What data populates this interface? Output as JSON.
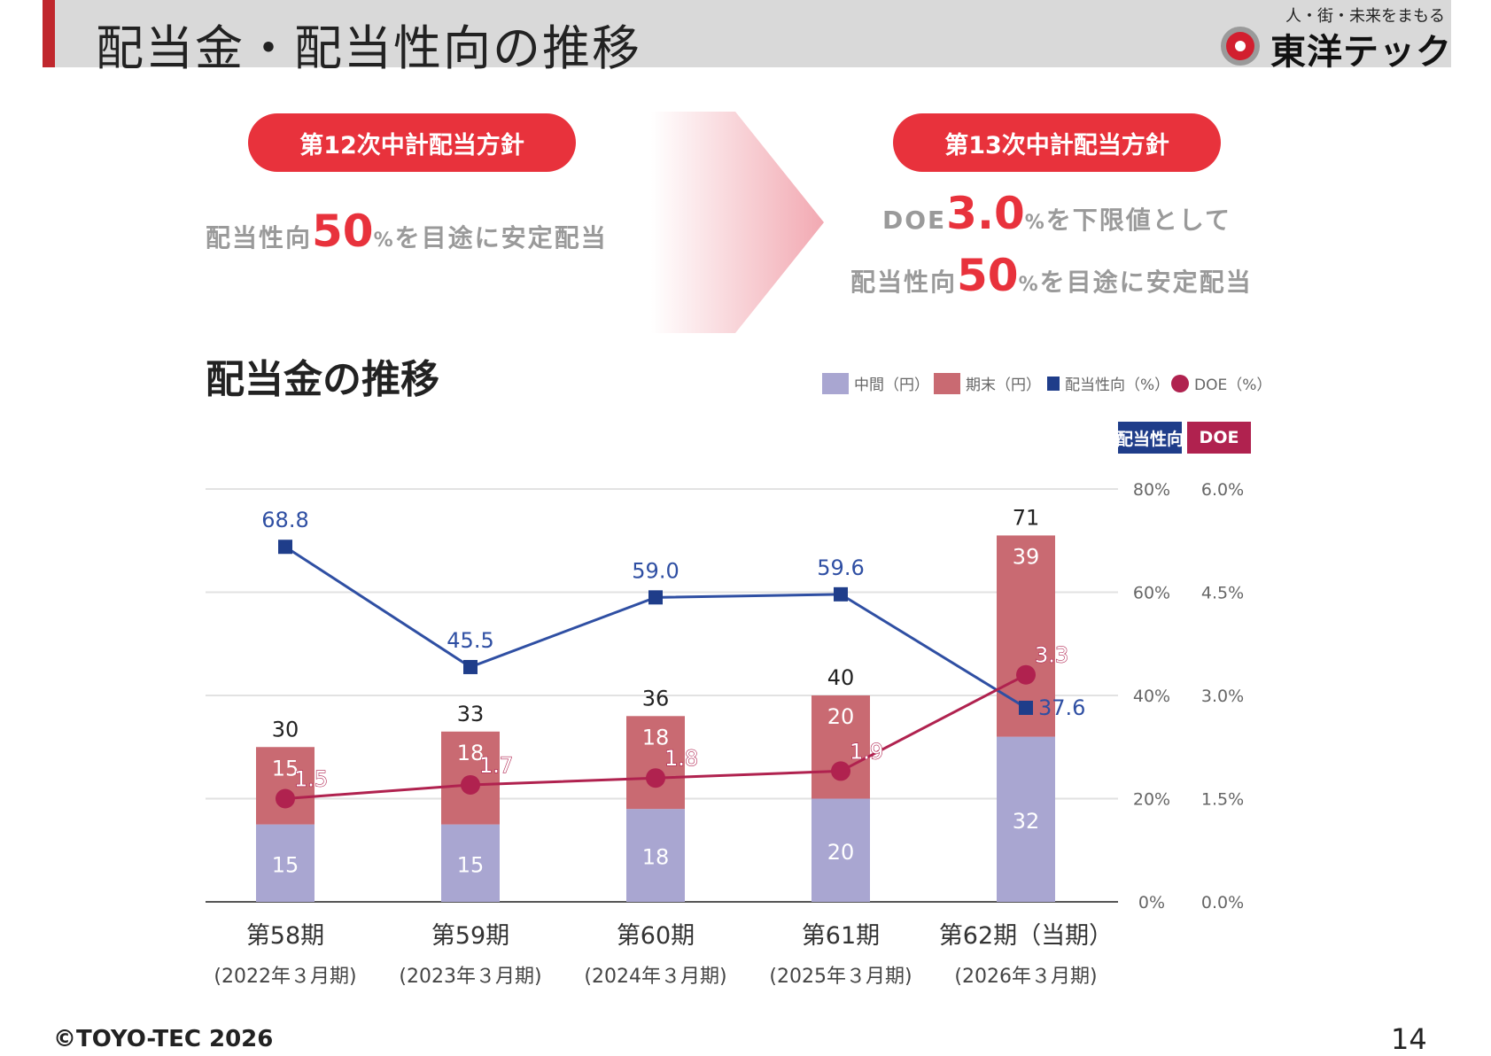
{
  "header": {
    "title": "配当金・配当性向の推移",
    "tagline": "人・街・未来をまもる",
    "brand": "東洋テック"
  },
  "policy": {
    "left": {
      "pill": "第12次中計配当方針",
      "prefix": "配当性向",
      "value": "50",
      "unit": "%",
      "suffix": "を目途に安定配当"
    },
    "right": {
      "pill": "第13次中計配当方針",
      "line1_prefix": "DOE",
      "line1_value": "3.0",
      "line1_unit": "%",
      "line1_suffix": "を下限値として",
      "line2_prefix": "配当性向",
      "line2_value": "50",
      "line2_unit": "%",
      "line2_suffix": "を目途に安定配当"
    }
  },
  "colors": {
    "accent": "#c0272d",
    "pill": "#e8323c",
    "interim": "#a9a6d1",
    "year_end": "#c96a72",
    "payout_line": "#2f4fa3",
    "payout_marker": "#1f3d8a",
    "doe_line": "#b0224f",
    "payout_badge": "#1f3d8a",
    "doe_badge": "#b0224f"
  },
  "chart_data": {
    "type": "bar",
    "title": "配当金の推移",
    "stacked": true,
    "categories": [
      "第58期",
      "第59期",
      "第60期",
      "第61期",
      "第62期（当期）"
    ],
    "periods": [
      "(2022年３月期)",
      "(2023年３月期)",
      "(2024年３月期)",
      "(2025年３月期)",
      "(2026年３月期)"
    ],
    "totals": [
      30,
      33,
      36,
      40,
      71
    ],
    "series": [
      {
        "name": "中間（円）",
        "type": "bar",
        "values": [
          15,
          15,
          18,
          20,
          32
        ]
      },
      {
        "name": "期末（円）",
        "type": "bar",
        "values": [
          15,
          18,
          18,
          20,
          39
        ]
      },
      {
        "name": "配当性向（%）",
        "type": "line",
        "axis": "payout",
        "values": [
          68.8,
          45.5,
          59.0,
          59.6,
          37.6
        ]
      },
      {
        "name": "DOE（%）",
        "type": "line",
        "axis": "doe",
        "values": [
          1.5,
          1.7,
          1.8,
          1.9,
          3.3
        ]
      }
    ],
    "payout_labels": [
      "68.8",
      "45.5",
      "59.0",
      "59.6",
      "37.6"
    ],
    "doe_labels": [
      "1.5",
      "1.7",
      "1.8",
      "1.9",
      "3.3"
    ],
    "axes": {
      "payout": {
        "label": "配当性向",
        "ticks": [
          "0%",
          "20%",
          "40%",
          "60%",
          "80%"
        ],
        "range": [
          0,
          80
        ]
      },
      "doe": {
        "label": "DOE",
        "ticks": [
          "0.0%",
          "1.5%",
          "3.0%",
          "4.5%",
          "6.0%"
        ],
        "range": [
          0,
          6
        ]
      }
    },
    "yen_range": [
      0,
      80
    ],
    "grid": true,
    "legend_position": "top-right"
  },
  "footer": {
    "copyright": "©TOYO-TEC 2026",
    "page": "14"
  }
}
